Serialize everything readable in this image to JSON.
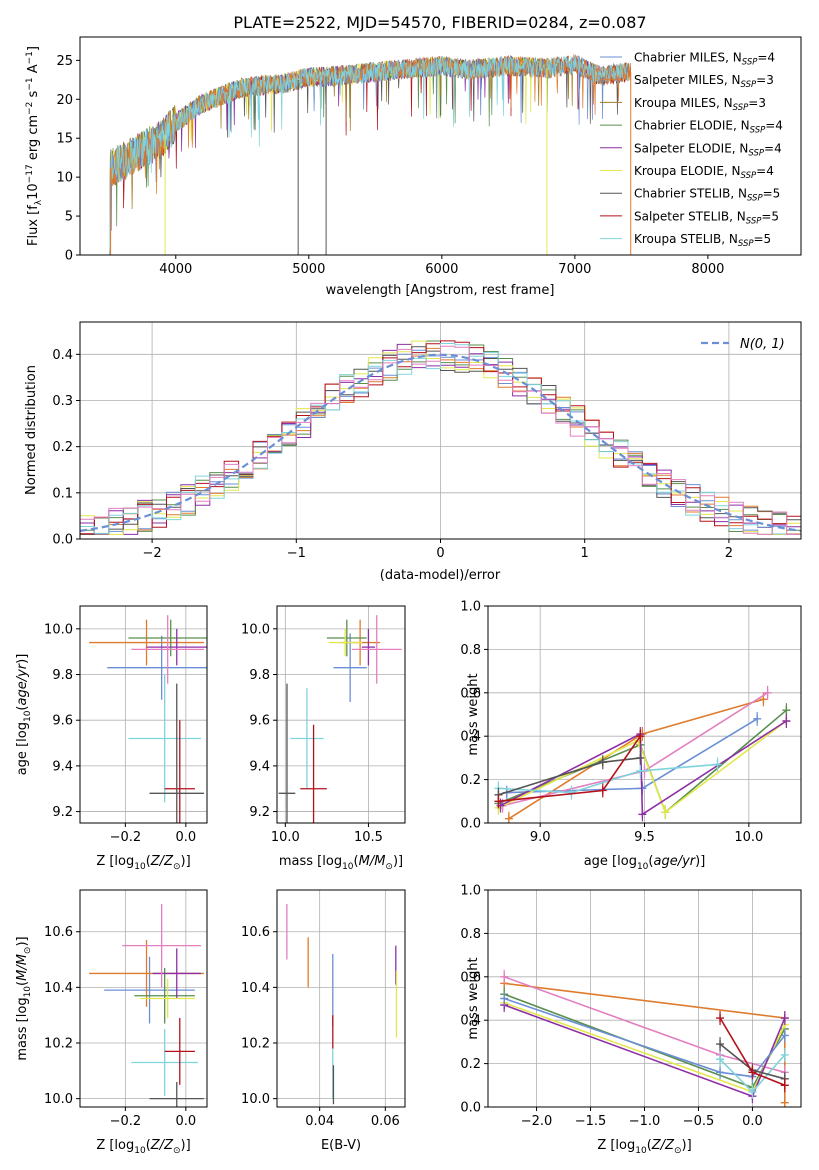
{
  "figure_title": "PLATE=2522, MJD=54570, FIBERID=0284, z=0.087",
  "colors": {
    "chab_miles": "#6a8fd5",
    "salp_miles": "#e07b2c",
    "krou_miles": "#a67c2a",
    "chab_elodie": "#5a8f4e",
    "salp_elodie": "#8e2fa6",
    "krou_elodie": "#e2e84a",
    "chab_stelib": "#555555",
    "salp_stelib": "#b5111b",
    "krou_stelib": "#7fd3dc",
    "pink": "#e37fc0",
    "normal": "#6a8fd5"
  },
  "chart_data": [
    {
      "id": "spectrum",
      "type": "line",
      "xlabel": "wavelength [Angstrom, rest frame]",
      "ylabel": "Flux [f$_\\lambda$10$^{-17}$ erg cm$^{-2}$ s$^{-1}$ A$^{-1}$]",
      "xlim": [
        3280,
        8700
      ],
      "ylim": [
        0,
        28
      ],
      "xticks": [
        4000,
        5000,
        6000,
        7000,
        8000
      ],
      "yticks": [
        0,
        5,
        10,
        15,
        20,
        25
      ],
      "grid": false,
      "legend_position": "top-right",
      "continuum": {
        "x": [
          3500,
          3700,
          3900,
          4000,
          4200,
          4500,
          4800,
          5000,
          5200,
          5500,
          5800,
          6000,
          6200,
          6500,
          6800,
          7000,
          7200,
          7400
        ],
        "y": [
          11,
          13,
          15,
          17,
          19.5,
          21.5,
          22,
          22.8,
          23,
          23.5,
          24,
          24.3,
          23.8,
          24.3,
          24,
          24.5,
          23,
          23.5
        ]
      },
      "legend": [
        {
          "label": "Chabrier MILES, N",
          "sub": "SSP",
          "suffix": "=4",
          "color_key": "chab_miles"
        },
        {
          "label": "Salpeter MILES, N",
          "sub": "SSP",
          "suffix": "=3",
          "color_key": "salp_miles"
        },
        {
          "label": "Kroupa MILES, N",
          "sub": "SSP",
          "suffix": "=3",
          "color_key": "krou_miles"
        },
        {
          "label": "Chabrier ELODIE, N",
          "sub": "SSP",
          "suffix": "=4",
          "color_key": "chab_elodie"
        },
        {
          "label": "Salpeter ELODIE, N",
          "sub": "SSP",
          "suffix": "=4",
          "color_key": "salp_elodie"
        },
        {
          "label": "Kroupa ELODIE, N",
          "sub": "SSP",
          "suffix": "=4",
          "color_key": "krou_elodie"
        },
        {
          "label": "Chabrier STELIB, N",
          "sub": "SSP",
          "suffix": "=5",
          "color_key": "chab_stelib"
        },
        {
          "label": "Salpeter STELIB, N",
          "sub": "SSP",
          "suffix": "=5",
          "color_key": "salp_stelib"
        },
        {
          "label": "Kroupa STELIB, N",
          "sub": "SSP",
          "suffix": "=5",
          "color_key": "krou_stelib"
        }
      ]
    },
    {
      "id": "residuals",
      "type": "line",
      "xlabel": "(data-model)/error",
      "ylabel": "Normed distribution",
      "xlim": [
        -2.5,
        2.5
      ],
      "ylim": [
        0,
        0.47
      ],
      "xticks": [
        -2,
        -1,
        0,
        1,
        2
      ],
      "yticks": [
        0.0,
        0.1,
        0.2,
        0.3,
        0.4
      ],
      "grid": true,
      "legend_position": "top-right",
      "legend_label": "N(0, 1)",
      "bin_width": 0.1
    },
    {
      "id": "age_vs_Z",
      "type": "scatter",
      "xlabel": "Z [log10(Z/Z⊙)]",
      "ylabel": "age  [log10(age/yr)]",
      "xlim": [
        -0.35,
        0.07
      ],
      "ylim": [
        9.15,
        10.1
      ],
      "xticks": [
        -0.2,
        0.0
      ],
      "yticks": [
        9.2,
        9.4,
        9.6,
        9.8,
        10.0
      ],
      "grid": true,
      "points": [
        {
          "color_key": "chab_miles",
          "x": -0.08,
          "xerr": 0.18,
          "y": 9.83,
          "yerr": 0.14
        },
        {
          "color_key": "salp_miles",
          "x": -0.13,
          "xerr": 0.19,
          "y": 9.94,
          "yerr": 0.1
        },
        {
          "color_key": "chab_elodie",
          "x": -0.05,
          "xerr": 0.14,
          "y": 9.96,
          "yerr": 0.08
        },
        {
          "color_key": "salp_elodie",
          "x": -0.03,
          "xerr": 0.1,
          "y": 9.92,
          "yerr": 0.08
        },
        {
          "color_key": "pink",
          "x": -0.06,
          "xerr": 0.12,
          "y": 9.91,
          "yerr": 0.15
        },
        {
          "color_key": "krou_stelib",
          "x": -0.07,
          "xerr": 0.12,
          "y": 9.52,
          "yerr": 0.28
        },
        {
          "color_key": "salp_stelib",
          "x": -0.02,
          "xerr": 0.05,
          "y": 9.3,
          "yerr": 0.3
        },
        {
          "color_key": "chab_stelib",
          "x": -0.03,
          "xerr": 0.09,
          "y": 9.28,
          "yerr": 0.48
        }
      ]
    },
    {
      "id": "age_vs_mass",
      "type": "scatter",
      "xlabel": "mass [log10(M/M⊙)]",
      "ylabel": "",
      "xlim": [
        9.95,
        10.72
      ],
      "ylim": [
        9.15,
        10.1
      ],
      "xticks": [
        10.0,
        10.5
      ],
      "yticks": [
        9.2,
        9.4,
        9.6,
        9.8,
        10.0
      ],
      "grid": true,
      "points": [
        {
          "color_key": "chab_miles",
          "x": 10.39,
          "xerr": 0.1,
          "y": 9.83,
          "yerr": 0.15
        },
        {
          "color_key": "salp_miles",
          "x": 10.45,
          "xerr": 0.12,
          "y": 9.94,
          "yerr": 0.1
        },
        {
          "color_key": "chab_elodie",
          "x": 10.37,
          "xerr": 0.12,
          "y": 9.96,
          "yerr": 0.08
        },
        {
          "color_key": "salp_elodie",
          "x": 10.5,
          "xerr": 0.04,
          "y": 9.92,
          "yerr": 0.08
        },
        {
          "color_key": "pink",
          "x": 10.55,
          "xerr": 0.15,
          "y": 9.91,
          "yerr": 0.15
        },
        {
          "color_key": "krou_elodie",
          "x": 10.36,
          "xerr": 0.1,
          "y": 9.94,
          "yerr": 0.06
        },
        {
          "color_key": "krou_stelib",
          "x": 10.13,
          "xerr": 0.1,
          "y": 9.52,
          "yerr": 0.22
        },
        {
          "color_key": "salp_stelib",
          "x": 10.17,
          "xerr": 0.08,
          "y": 9.3,
          "yerr": 0.28
        },
        {
          "color_key": "chab_stelib",
          "x": 10.01,
          "xerr": 0.05,
          "y": 9.28,
          "yerr": 0.48
        }
      ]
    },
    {
      "id": "weight_vs_age",
      "type": "line",
      "xlabel": "age  [log10(age/yr)]",
      "ylabel": "mass weight",
      "xlim": [
        8.75,
        10.25
      ],
      "ylim": [
        0,
        1.0
      ],
      "xticks": [
        9.0,
        9.5,
        10.0
      ],
      "yticks": [
        0.0,
        0.2,
        0.4,
        0.6,
        0.8,
        1.0
      ],
      "grid": true,
      "series": [
        {
          "color_key": "salp_miles",
          "x": [
            8.85,
            9.49,
            10.07
          ],
          "y": [
            0.02,
            0.41,
            0.57
          ]
        },
        {
          "color_key": "chab_miles",
          "x": [
            8.84,
            9.49,
            10.04
          ],
          "y": [
            0.14,
            0.16,
            0.48
          ]
        },
        {
          "color_key": "pink",
          "x": [
            8.82,
            9.5,
            10.09
          ],
          "y": [
            0.08,
            0.24,
            0.6
          ]
        },
        {
          "color_key": "chab_elodie",
          "x": [
            8.8,
            9.48,
            9.6,
            10.18
          ],
          "y": [
            0.09,
            0.36,
            0.05,
            0.52
          ]
        },
        {
          "color_key": "krou_elodie",
          "x": [
            8.8,
            9.47,
            9.6,
            10.18
          ],
          "y": [
            0.07,
            0.38,
            0.05,
            0.47
          ]
        },
        {
          "color_key": "salp_elodie",
          "x": [
            8.81,
            9.48,
            9.49,
            10.18
          ],
          "y": [
            0.08,
            0.41,
            0.04,
            0.47
          ]
        },
        {
          "color_key": "krou_stelib",
          "x": [
            8.8,
            9.15,
            9.48,
            9.85
          ],
          "y": [
            0.16,
            0.14,
            0.24,
            0.27
          ]
        },
        {
          "color_key": "chab_stelib",
          "x": [
            8.8,
            9.3,
            9.48
          ],
          "y": [
            0.13,
            0.28,
            0.3
          ]
        },
        {
          "color_key": "salp_stelib",
          "x": [
            8.8,
            9.3,
            9.48
          ],
          "y": [
            0.1,
            0.15,
            0.4
          ]
        }
      ]
    },
    {
      "id": "mass_vs_Z",
      "type": "scatter",
      "xlabel": "Z [log10(Z/Z⊙)]",
      "ylabel": "mass [log10(M/M⊙)]",
      "xlim": [
        -0.35,
        0.07
      ],
      "ylim": [
        9.97,
        10.75
      ],
      "xticks": [
        -0.2,
        0.0
      ],
      "yticks": [
        10.0,
        10.2,
        10.4,
        10.6
      ],
      "grid": true,
      "points": [
        {
          "color_key": "chab_miles",
          "x": -0.12,
          "xerr": 0.15,
          "y": 10.39,
          "yerr": 0.12
        },
        {
          "color_key": "salp_miles",
          "x": -0.13,
          "xerr": 0.19,
          "y": 10.45,
          "yerr": 0.12
        },
        {
          "color_key": "chab_elodie",
          "x": -0.07,
          "xerr": 0.1,
          "y": 10.37,
          "yerr": 0.1
        },
        {
          "color_key": "salp_elodie",
          "x": -0.03,
          "xerr": 0.08,
          "y": 10.45,
          "yerr": 0.09
        },
        {
          "color_key": "pink",
          "x": -0.08,
          "xerr": 0.13,
          "y": 10.55,
          "yerr": 0.15
        },
        {
          "color_key": "krou_elodie",
          "x": -0.06,
          "xerr": 0.09,
          "y": 10.36,
          "yerr": 0.07
        },
        {
          "color_key": "krou_stelib",
          "x": -0.07,
          "xerr": 0.11,
          "y": 10.13,
          "yerr": 0.12
        },
        {
          "color_key": "salp_stelib",
          "x": -0.02,
          "xerr": 0.05,
          "y": 10.17,
          "yerr": 0.12
        },
        {
          "color_key": "chab_stelib",
          "x": -0.03,
          "xerr": 0.09,
          "y": 10.0,
          "yerr": 0.06
        }
      ]
    },
    {
      "id": "mass_vs_ebv",
      "type": "scatter",
      "xlabel": "E(B-V)",
      "ylabel": "",
      "xlim": [
        0.027,
        0.066
      ],
      "ylim": [
        9.97,
        10.75
      ],
      "xticks": [
        0.04,
        0.06
      ],
      "yticks": [
        10.0,
        10.2,
        10.4,
        10.6
      ],
      "grid": true,
      "points": [
        {
          "color_key": "pink",
          "x": 0.03,
          "xerr": 0,
          "y": 10.6,
          "yerr": 0.1
        },
        {
          "color_key": "salp_miles",
          "x": 0.0365,
          "xerr": 0,
          "y": 10.49,
          "yerr": 0.09
        },
        {
          "color_key": "chab_miles",
          "x": 0.044,
          "xerr": 0,
          "y": 10.39,
          "yerr": 0.13
        },
        {
          "color_key": "salp_stelib",
          "x": 0.044,
          "xerr": 0,
          "y": 10.24,
          "yerr": 0.06
        },
        {
          "color_key": "krou_stelib",
          "x": 0.044,
          "xerr": 0,
          "y": 10.09,
          "yerr": 0.09
        },
        {
          "color_key": "chab_stelib",
          "x": 0.0442,
          "xerr": 0,
          "y": 10.05,
          "yerr": 0.07
        },
        {
          "color_key": "salp_elodie",
          "x": 0.0632,
          "xerr": 0,
          "y": 10.48,
          "yerr": 0.07
        },
        {
          "color_key": "krou_elodie",
          "x": 0.0634,
          "xerr": 0,
          "y": 10.34,
          "yerr": 0.12
        }
      ]
    },
    {
      "id": "weight_vs_Z",
      "type": "line",
      "xlabel": "Z [log10(Z/Z⊙)]",
      "ylabel": "mass weight",
      "xlim": [
        -2.45,
        0.45
      ],
      "ylim": [
        0,
        1.0
      ],
      "xticks": [
        -2.0,
        -1.5,
        -1.0,
        -0.5,
        0.0
      ],
      "yticks": [
        0.0,
        0.2,
        0.4,
        0.6,
        0.8,
        1.0
      ],
      "grid": true,
      "series": [
        {
          "color_key": "salp_miles",
          "x": [
            -2.3,
            0.3,
            0.3
          ],
          "y": [
            0.57,
            0.41,
            0.02
          ]
        },
        {
          "color_key": "pink",
          "x": [
            -2.3,
            -0.3,
            0.3
          ],
          "y": [
            0.6,
            0.24,
            0.16
          ]
        },
        {
          "color_key": "chab_elodie",
          "x": [
            -2.3,
            0.0,
            0.3
          ],
          "y": [
            0.52,
            0.09,
            0.36
          ]
        },
        {
          "color_key": "krou_elodie",
          "x": [
            -2.3,
            0.0,
            0.3
          ],
          "y": [
            0.48,
            0.07,
            0.38
          ]
        },
        {
          "color_key": "salp_elodie",
          "x": [
            -2.3,
            0.0,
            0.3
          ],
          "y": [
            0.47,
            0.05,
            0.41
          ]
        },
        {
          "color_key": "chab_miles",
          "x": [
            -2.3,
            -0.3,
            0.0,
            0.3
          ],
          "y": [
            0.5,
            0.16,
            0.14,
            0.33
          ]
        },
        {
          "color_key": "krou_stelib",
          "x": [
            -0.3,
            0.0,
            0.3
          ],
          "y": [
            0.22,
            0.07,
            0.24
          ]
        },
        {
          "color_key": "chab_stelib",
          "x": [
            -0.3,
            0.0,
            0.3
          ],
          "y": [
            0.29,
            0.17,
            0.13
          ]
        },
        {
          "color_key": "salp_stelib",
          "x": [
            -0.3,
            0.0,
            0.3
          ],
          "y": [
            0.41,
            0.16,
            0.1
          ]
        }
      ]
    }
  ]
}
